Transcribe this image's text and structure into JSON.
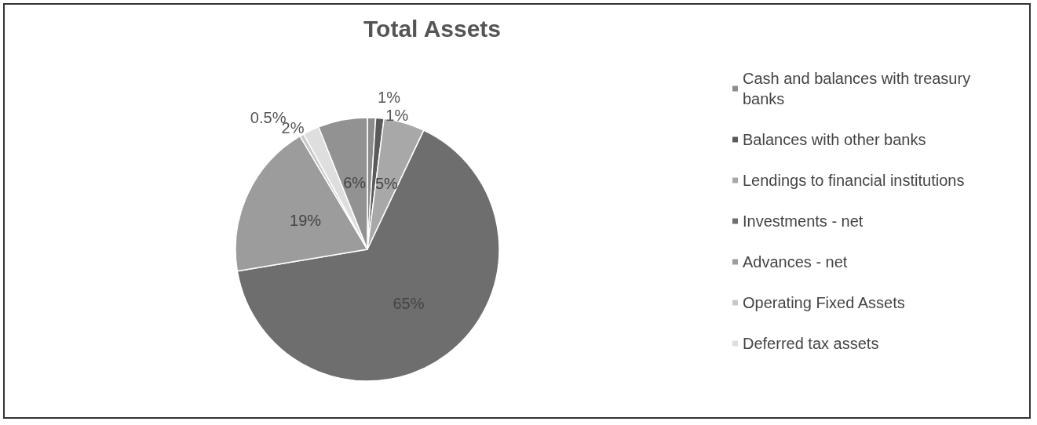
{
  "chart_data": {
    "type": "pie",
    "title": "Total Assets",
    "categories": [
      "Cash and balances with treasury banks",
      "Balances with other banks",
      "Lendings to financial institutions",
      "Investments - net",
      "Advances - net",
      "Operating Fixed Assets",
      "Deferred tax assets",
      null
    ],
    "values": [
      1,
      1,
      5,
      65,
      19,
      0.5,
      2,
      6
    ],
    "value_labels": [
      "1%",
      "1%",
      "5%",
      "65%",
      "19%",
      "0.5%",
      "2%",
      "6%"
    ],
    "colors": [
      "#8c8c8c",
      "#5a5a5a",
      "#a8a8a8",
      "#6e6e6e",
      "#9c9c9c",
      "#c8c8c8",
      "#dedede",
      "#929292"
    ],
    "legend": "right"
  }
}
